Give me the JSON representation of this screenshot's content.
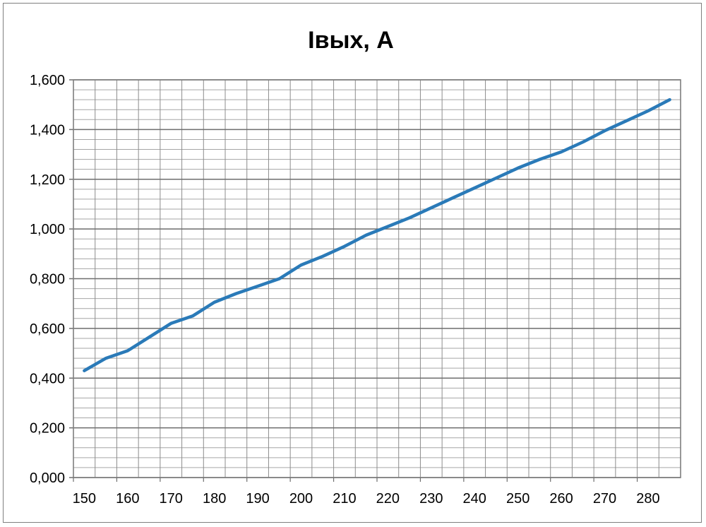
{
  "chart_data": {
    "type": "line",
    "title": "Iвых, А",
    "xlabel": "",
    "ylabel": "",
    "x_tick_labels": [
      "150",
      "160",
      "170",
      "180",
      "190",
      "200",
      "210",
      "220",
      "230",
      "240",
      "250",
      "260",
      "270",
      "280"
    ],
    "y_tick_labels": [
      "0,000",
      "0,200",
      "0,400",
      "0,600",
      "0,800",
      "1,000",
      "1,200",
      "1,400",
      "1,600"
    ],
    "x_categories": [
      150,
      155,
      160,
      165,
      170,
      175,
      180,
      185,
      190,
      195,
      200,
      205,
      210,
      215,
      220,
      225,
      230,
      235,
      240,
      245,
      250,
      255,
      260,
      265,
      270,
      275,
      280,
      285
    ],
    "ylim": [
      0,
      1.6
    ],
    "grid": true,
    "series": [
      {
        "color": "#2a7ab8",
        "values": [
          0.43,
          0.48,
          0.51,
          0.565,
          0.62,
          0.65,
          0.705,
          0.74,
          0.77,
          0.8,
          0.855,
          0.89,
          0.93,
          0.975,
          1.01,
          1.045,
          1.085,
          1.125,
          1.165,
          1.205,
          1.245,
          1.28,
          1.31,
          1.35,
          1.395,
          1.435,
          1.475,
          1.52
        ]
      }
    ]
  }
}
